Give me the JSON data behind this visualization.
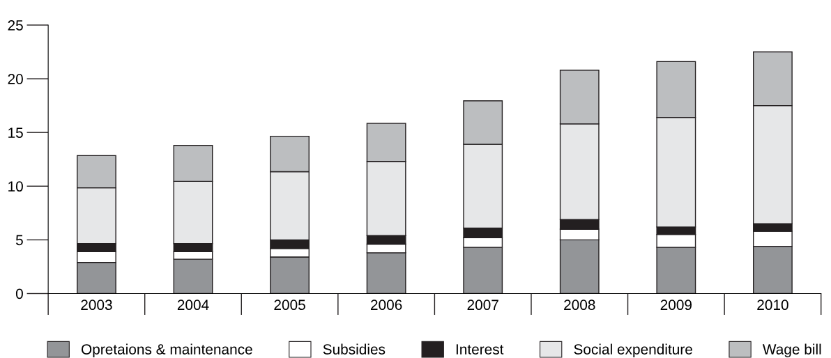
{
  "chart_data": {
    "type": "bar",
    "stacked": true,
    "categories": [
      "2003",
      "2004",
      "2005",
      "2006",
      "2007",
      "2008",
      "2009",
      "2010"
    ],
    "series": [
      {
        "name": "Opretaions & maintenance",
        "color": "#939598",
        "values": [
          2.9,
          3.2,
          3.4,
          3.8,
          4.3,
          5.0,
          4.3,
          4.4
        ]
      },
      {
        "name": "Subsidies",
        "color": "#ffffff",
        "values": [
          1.0,
          0.7,
          0.8,
          0.8,
          0.9,
          1.0,
          1.2,
          1.4
        ]
      },
      {
        "name": "Interest",
        "color": "#231f20",
        "values": [
          0.75,
          0.75,
          0.8,
          0.8,
          0.9,
          0.9,
          0.7,
          0.7
        ]
      },
      {
        "name": "Social expenditure",
        "color": "#e6e7e8",
        "values": [
          5.2,
          5.8,
          6.35,
          6.9,
          7.8,
          8.9,
          10.2,
          11.0
        ]
      },
      {
        "name": "Wage bill",
        "color": "#bcbec0",
        "values": [
          3.0,
          3.35,
          3.3,
          3.55,
          4.05,
          5.0,
          5.2,
          5.0
        ]
      }
    ],
    "ylim": [
      0,
      25
    ],
    "yticks": [
      0,
      5,
      10,
      15,
      20,
      25
    ],
    "grid": false,
    "legend": "bottom"
  }
}
